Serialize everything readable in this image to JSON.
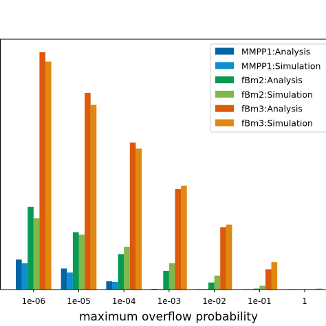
{
  "chart_data": {
    "type": "bar",
    "title": "",
    "xlabel": "maximum overflow probability",
    "ylabel": "",
    "ylim": [
      0,
      100
    ],
    "grid": false,
    "legend_position": "top-right",
    "categories": [
      "1e-06",
      "1e-05",
      "1e-04",
      "1e-03",
      "1e-02",
      "1e-01",
      "1"
    ],
    "series": [
      {
        "name": "MMPP1:Analysis",
        "color": "#0064a5",
        "values": [
          12.7,
          8.9,
          3.5,
          0.3,
          0.2,
          0.2,
          0.2
        ]
      },
      {
        "name": "MMPP1:Simulation",
        "color": "#0f8fd0",
        "values": [
          11.2,
          7.2,
          3.2,
          0.2,
          0.2,
          0.2,
          0.2
        ]
      },
      {
        "name": "fBm2:Analysis",
        "color": "#069a56",
        "values": [
          35.0,
          24.3,
          15.0,
          7.9,
          3.0,
          0.4,
          0.2
        ]
      },
      {
        "name": "fBm2:Simulation",
        "color": "#80b84a",
        "values": [
          30.2,
          23.2,
          18.1,
          11.2,
          5.9,
          1.6,
          0.2
        ]
      },
      {
        "name": "fBm3:Analysis",
        "color": "#dc5a0c",
        "values": [
          100.5,
          83.3,
          62.2,
          42.5,
          26.4,
          8.6,
          0.2
        ]
      },
      {
        "name": "fBm3:Simulation",
        "color": "#e0880f",
        "values": [
          96.5,
          78.2,
          59.7,
          44.0,
          27.5,
          11.6,
          0.4
        ]
      }
    ]
  }
}
